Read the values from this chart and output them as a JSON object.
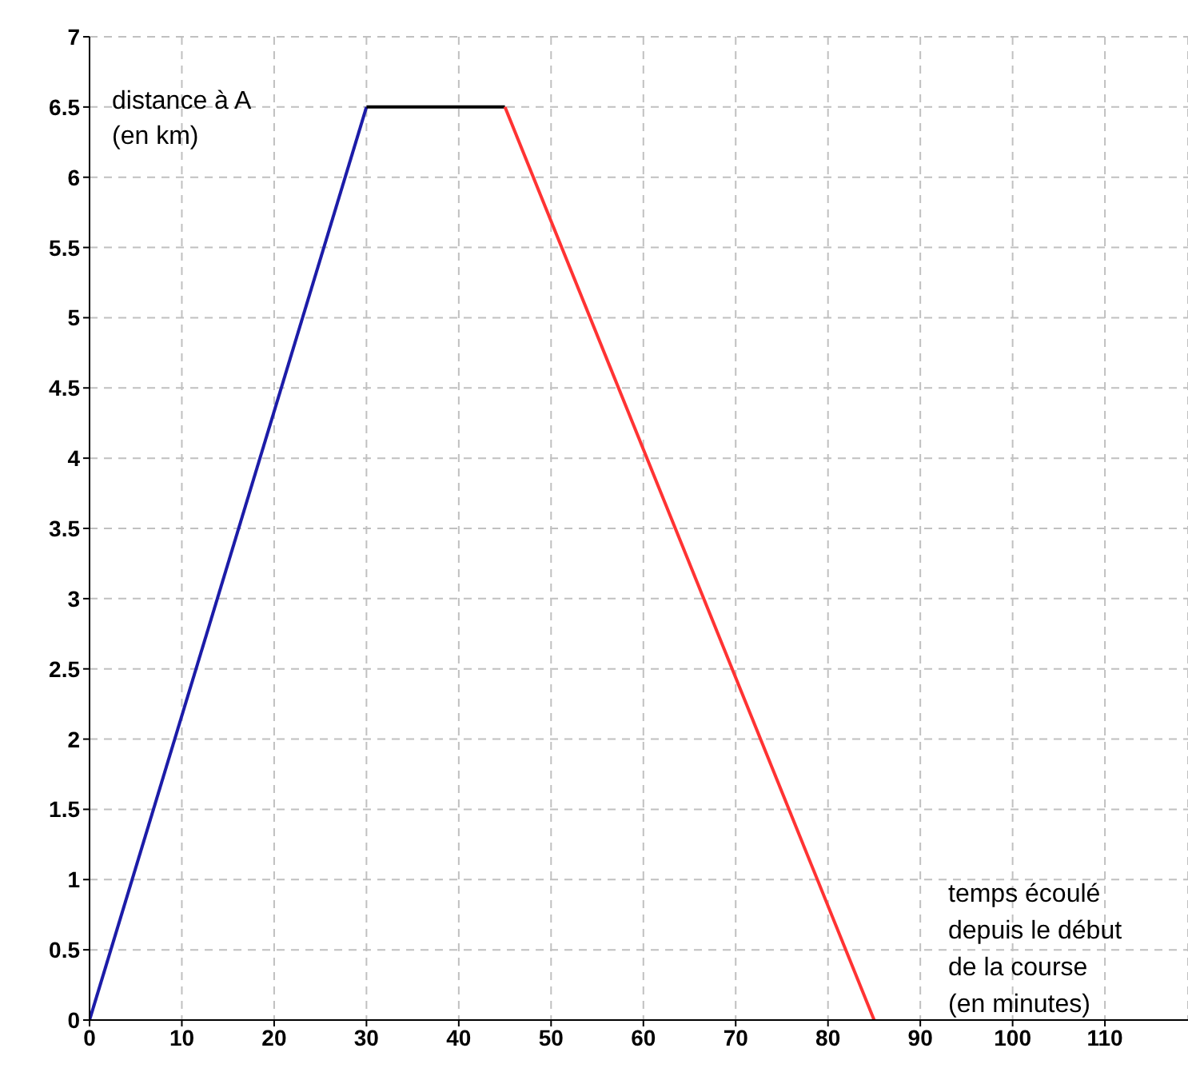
{
  "chart_data": {
    "type": "line",
    "xlabel": "temps  écoulé\ndepuis le début\nde la course\n(en minutes)",
    "ylabel": "distance à A\n(en km)",
    "series": [
      {
        "color": "#1c1ca8",
        "x": [
          0,
          30
        ],
        "values": [
          0,
          6.5
        ]
      },
      {
        "color": "#000000",
        "x": [
          30,
          45
        ],
        "values": [
          6.5,
          6.5
        ]
      },
      {
        "color": "#ff3333",
        "x": [
          45,
          85
        ],
        "values": [
          6.5,
          0
        ]
      }
    ],
    "xlim": [
      0,
      119
    ],
    "xticks": [
      0,
      10,
      20,
      30,
      40,
      50,
      60,
      70,
      80,
      90,
      100,
      110
    ],
    "ylim": [
      0,
      7
    ],
    "yticks": [
      0,
      0.5,
      1,
      1.5,
      2,
      2.5,
      3,
      3.5,
      4,
      4.5,
      5,
      5.5,
      6,
      6.5,
      7
    ],
    "grid": true,
    "marker": "none",
    "line_style": "solid"
  }
}
